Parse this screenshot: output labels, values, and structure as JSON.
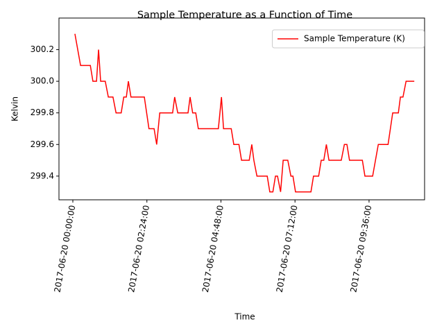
{
  "chart_data": {
    "type": "line",
    "title": "Sample Temperature as a Function of Time",
    "x_label": "Time",
    "y_label": "Kelvin",
    "x": [
      "2017-06-20 00:04:00",
      "2017-06-20 00:15:00",
      "2017-06-20 00:34:00",
      "2017-06-20 00:39:00",
      "2017-06-20 00:46:00",
      "2017-06-20 00:50:00",
      "2017-06-20 00:54:00",
      "2017-06-20 01:03:00",
      "2017-06-20 01:09:00",
      "2017-06-20 01:18:00",
      "2017-06-20 01:24:00",
      "2017-06-20 01:34:00",
      "2017-06-20 01:39:00",
      "2017-06-20 01:44:00",
      "2017-06-20 01:48:00",
      "2017-06-20 01:53:00",
      "2017-06-20 02:19:00",
      "2017-06-20 02:28:00",
      "2017-06-20 02:38:00",
      "2017-06-20 02:43:00",
      "2017-06-20 02:49:00",
      "2017-06-20 03:14:00",
      "2017-06-20 03:18:00",
      "2017-06-20 03:24:00",
      "2017-06-20 03:44:00",
      "2017-06-20 03:48:00",
      "2017-06-20 03:53:00",
      "2017-06-20 03:59:00",
      "2017-06-20 04:04:00",
      "2017-06-20 04:43:00",
      "2017-06-20 04:49:00",
      "2017-06-20 04:53:00",
      "2017-06-20 05:08:00",
      "2017-06-20 05:13:00",
      "2017-06-20 05:23:00",
      "2017-06-20 05:28:00",
      "2017-06-20 05:43:00",
      "2017-06-20 05:48:00",
      "2017-06-20 05:52:00",
      "2017-06-20 05:58:00",
      "2017-06-20 06:18:00",
      "2017-06-20 06:23:00",
      "2017-06-20 06:29:00",
      "2017-06-20 06:34:00",
      "2017-06-20 06:38:00",
      "2017-06-20 06:44:00",
      "2017-06-20 06:49:00",
      "2017-06-20 06:58:00",
      "2017-06-20 07:04:00",
      "2017-06-20 07:08:00",
      "2017-06-20 07:13:00",
      "2017-06-20 07:43:00",
      "2017-06-20 07:48:00",
      "2017-06-20 07:58:00",
      "2017-06-20 08:03:00",
      "2017-06-20 08:08:00",
      "2017-06-20 08:13:00",
      "2017-06-20 08:18:00",
      "2017-06-20 08:42:00",
      "2017-06-20 08:48:00",
      "2017-06-20 08:53:00",
      "2017-06-20 08:58:00",
      "2017-06-20 09:23:00",
      "2017-06-20 09:28:00",
      "2017-06-20 09:43:00",
      "2017-06-20 09:54:00",
      "2017-06-20 10:13:00",
      "2017-06-20 10:22:00",
      "2017-06-20 10:33:00",
      "2017-06-20 10:37:00",
      "2017-06-20 10:42:00",
      "2017-06-20 10:48:00",
      "2017-06-20 11:04:00"
    ],
    "series": [
      {
        "name": "Sample Temperature (K)",
        "color": "#ff0000",
        "values": [
          300.3,
          300.1,
          300.1,
          300.0,
          300.0,
          300.2,
          300.0,
          300.0,
          299.9,
          299.9,
          299.8,
          299.8,
          299.9,
          299.9,
          300.0,
          299.9,
          299.9,
          299.7,
          299.7,
          299.6,
          299.8,
          299.8,
          299.9,
          299.8,
          299.8,
          299.9,
          299.8,
          299.8,
          299.7,
          299.7,
          299.9,
          299.7,
          299.7,
          299.6,
          299.6,
          299.5,
          299.5,
          299.6,
          299.5,
          299.4,
          299.4,
          299.3,
          299.3,
          299.4,
          299.4,
          299.3,
          299.5,
          299.5,
          299.4,
          299.4,
          299.3,
          299.3,
          299.4,
          299.4,
          299.5,
          299.5,
          299.6,
          299.5,
          299.5,
          299.6,
          299.6,
          299.5,
          299.5,
          299.4,
          299.4,
          299.6,
          299.6,
          299.8,
          299.8,
          299.9,
          299.9,
          300.0,
          300.0
        ]
      }
    ],
    "xlim": [
      "2017-06-19 23:33:00",
      "2017-06-20 11:24:00"
    ],
    "xticks": [
      "2017-06-20 00:00:00",
      "2017-06-20 02:24:00",
      "2017-06-20 04:48:00",
      "2017-06-20 07:12:00",
      "2017-06-20 09:36:00"
    ],
    "ylim": [
      299.25,
      300.4
    ],
    "yticks": [
      299.4,
      299.6,
      299.8,
      {
        "value": 300.0,
        "label": "300.0"
      },
      300.2
    ],
    "legend": "upper right"
  }
}
